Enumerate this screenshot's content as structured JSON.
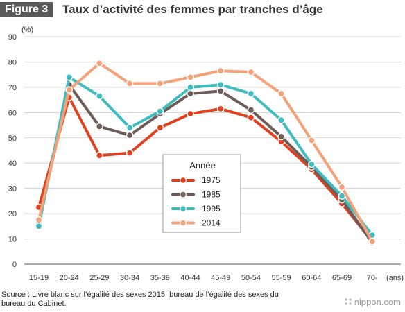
{
  "header": {
    "badge": "Figure 3",
    "title": "Taux d’activité des femmes par tranches d’âge"
  },
  "chart_data": {
    "type": "line",
    "title": "Taux d’activité des femmes par tranches d’âge",
    "ylabel": "(%)",
    "xlabel": "(ans)",
    "ylim": [
      0,
      90
    ],
    "yticks": [
      0,
      10,
      20,
      30,
      40,
      50,
      60,
      70,
      80,
      90
    ],
    "grid": true,
    "categories": [
      "15-19",
      "20-24",
      "25-29",
      "30-34",
      "35-39",
      "40-44",
      "45-49",
      "50-54",
      "55-59",
      "60-64",
      "65-69",
      "70-"
    ],
    "legend_title": "Année",
    "legend_position": "center",
    "series": [
      {
        "name": "1975",
        "color": "#e1401f",
        "values": [
          22.5,
          66,
          43,
          44,
          54,
          59.5,
          61.5,
          58,
          48.5,
          37.5,
          24,
          9
        ]
      },
      {
        "name": "1985",
        "color": "#6c5b57",
        "values": [
          16.5,
          71,
          54.5,
          51,
          59.5,
          67.5,
          68.5,
          61,
          50.5,
          38.5,
          25.5,
          8.5
        ]
      },
      {
        "name": "1995",
        "color": "#3fbcbd",
        "values": [
          15,
          74,
          66.5,
          54,
          60.5,
          70,
          71,
          67.5,
          57,
          39.5,
          27,
          11.5
        ]
      },
      {
        "name": "2014",
        "color": "#f4a27a",
        "values": [
          17.5,
          69,
          79.5,
          71.5,
          71.5,
          74,
          76.5,
          76,
          67.5,
          49,
          30.5,
          9
        ]
      }
    ]
  },
  "footer": {
    "source": "Source : Livre blanc sur l’égalité des sexes 2015, bureau de l’égalité des sexes du bureau du Cabinet.",
    "brand": "nippon.com"
  }
}
